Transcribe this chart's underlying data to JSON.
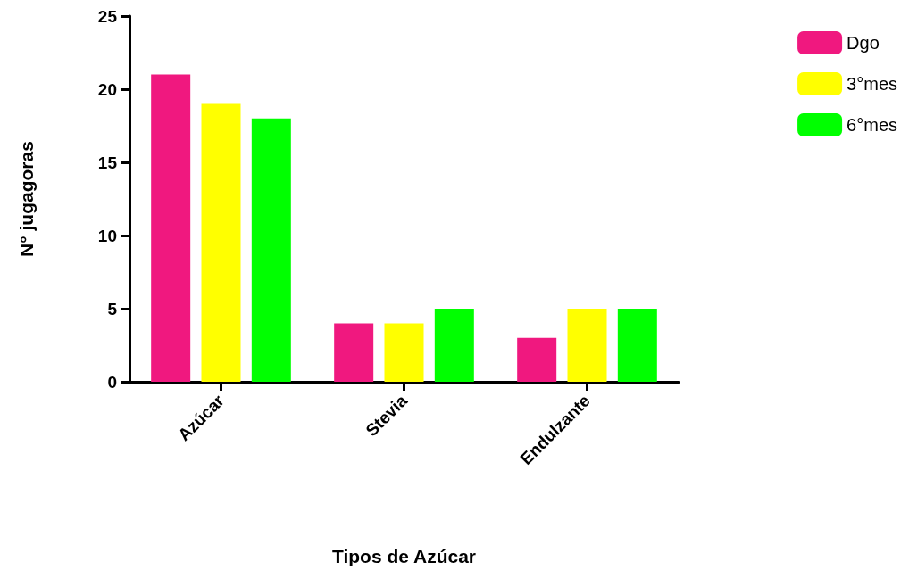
{
  "chart_data": {
    "type": "bar",
    "xlabel": "Tipos de Azúcar",
    "ylabel": "N° jugagoras",
    "categories": [
      "Azúcar",
      "Stevia",
      "Endulzante"
    ],
    "series": [
      {
        "name": "Dgo",
        "color": "#f0187f",
        "values": [
          21,
          4,
          3
        ]
      },
      {
        "name": "3°mes",
        "color": "#ffff00",
        "values": [
          19,
          4,
          5
        ]
      },
      {
        "name": "6°mes",
        "color": "#00ff00",
        "values": [
          18,
          5,
          5
        ]
      }
    ],
    "ylim": [
      0,
      25
    ],
    "yticks": [
      0,
      5,
      10,
      15,
      20,
      25
    ],
    "grid": false,
    "legend": "top right"
  }
}
